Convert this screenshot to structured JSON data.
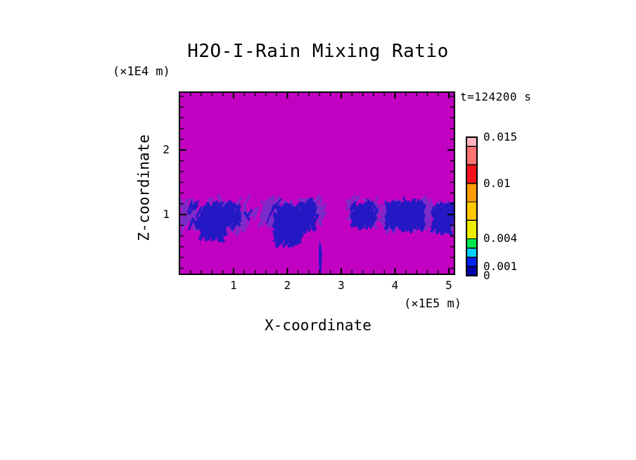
{
  "window": {
    "background": "#FFFFFF"
  },
  "chart_data": {
    "type": "heatmap",
    "title": "H2O-I-Rain Mixing Ratio",
    "timestamp_label": "t=124200 s",
    "xlabel": "X-coordinate",
    "x_unit_label": "(×1E5 m)",
    "ylabel": "Z-coordinate",
    "y_unit_label": "(×1E4 m)",
    "xlim": [
      0,
      5.1
    ],
    "ylim": [
      0.07,
      2.9
    ],
    "x_major_ticks": [
      1,
      2,
      3,
      4,
      5
    ],
    "x_tick_labels": [
      "1",
      "2",
      "3",
      "4",
      "5"
    ],
    "x_minor_divisions": 5,
    "y_major_ticks": [
      1,
      2
    ],
    "y_tick_labels": [
      "1",
      "2"
    ],
    "y_minor_divisions": 6,
    "frame_color": "#000000",
    "field": {
      "background_color": "#C200C2",
      "fringe_color": "#7B2BC9",
      "core_color": "#2418C4",
      "description": "Magenta background (zero rain) with a horizontal band of streaky dark-blue rain cells centered near z = 1E4 m, plus one narrow fall streak reaching the surface near x = 2.6E5 m",
      "rain_band": {
        "z_center": 1.0,
        "clusters": [
          {
            "x0": 0.03,
            "x1": 1.25,
            "z_top": 1.23,
            "z_bot": 0.73,
            "density": 1.0,
            "cores": [
              {
                "x0": 0.4,
                "x1": 0.83,
                "z_top": 1.06,
                "z_bot": 0.66,
                "density": 1.6,
                "solid": true
              },
              {
                "x0": 0.8,
                "x1": 1.1,
                "z_top": 1.12,
                "z_bot": 0.88,
                "density": 1.0
              }
            ]
          },
          {
            "x0": 1.2,
            "x1": 1.48,
            "z_top": 1.16,
            "z_bot": 0.94,
            "density": 0.35,
            "cores": []
          },
          {
            "x0": 1.52,
            "x1": 2.66,
            "z_top": 1.25,
            "z_bot": 0.82,
            "density": 1.0,
            "cores": [
              {
                "x0": 1.78,
                "x1": 2.24,
                "z_top": 1.08,
                "z_bot": 0.58,
                "density": 1.5,
                "taper": true
              },
              {
                "x0": 2.28,
                "x1": 2.52,
                "z_top": 1.12,
                "z_bot": 0.8,
                "density": 1.1
              }
            ]
          },
          {
            "x0": 3.12,
            "x1": 3.74,
            "z_top": 1.21,
            "z_bot": 0.84,
            "density": 0.85,
            "cores": [
              {
                "x0": 3.22,
                "x1": 3.62,
                "z_top": 1.1,
                "z_bot": 0.87,
                "density": 1.0
              }
            ]
          },
          {
            "x0": 3.76,
            "x1": 4.64,
            "z_top": 1.26,
            "z_bot": 0.76,
            "density": 1.0,
            "cores": [
              {
                "x0": 3.86,
                "x1": 4.52,
                "z_top": 1.14,
                "z_bot": 0.8,
                "density": 1.2
              }
            ]
          },
          {
            "x0": 4.64,
            "x1": 5.09,
            "z_top": 1.21,
            "z_bot": 0.73,
            "density": 0.9,
            "cores": [
              {
                "x0": 4.76,
                "x1": 5.07,
                "z_top": 1.12,
                "z_bot": 0.76,
                "density": 1.3
              }
            ]
          }
        ],
        "fall_streak": {
          "x": 2.61,
          "z_top": 0.6,
          "z_bot": 0.075
        },
        "specks": [
          {
            "x": 2.7,
            "z": 1.17
          }
        ]
      }
    },
    "colorbar": {
      "value_min": 0,
      "value_max": 0.015,
      "labels": [
        {
          "text": "0.015",
          "value": 0.015
        },
        {
          "text": "0.01",
          "value": 0.01
        },
        {
          "text": "0.004",
          "value": 0.004
        },
        {
          "text": "0.001",
          "value": 0.001
        },
        {
          "text": "0",
          "value": 0
        }
      ],
      "segments": [
        {
          "from": 0.014,
          "to": 0.015,
          "color": "#FFB4BE"
        },
        {
          "from": 0.012,
          "to": 0.014,
          "color": "#FF7373"
        },
        {
          "from": 0.01,
          "to": 0.012,
          "color": "#F5121C"
        },
        {
          "from": 0.008,
          "to": 0.01,
          "color": "#FF9C00"
        },
        {
          "from": 0.006,
          "to": 0.008,
          "color": "#FFC800"
        },
        {
          "from": 0.004,
          "to": 0.006,
          "color": "#EDED00"
        },
        {
          "from": 0.003,
          "to": 0.004,
          "color": "#00E44E"
        },
        {
          "from": 0.002,
          "to": 0.003,
          "color": "#00CFFF"
        },
        {
          "from": 0.001,
          "to": 0.002,
          "color": "#0023F2"
        },
        {
          "from": 0.0,
          "to": 0.001,
          "color": "#0000AA"
        }
      ]
    }
  }
}
